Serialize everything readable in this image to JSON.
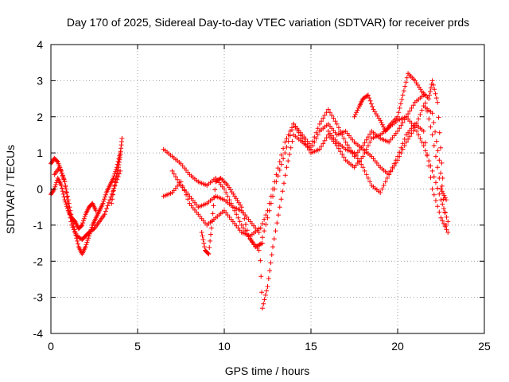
{
  "chart_data": {
    "type": "scatter",
    "title": "Day 170 of 2025, Sidereal Day-to-day VTEC variation (SDTVAR) for receiver prds",
    "xlabel": "GPS time / hours",
    "ylabel": "SDTVAR / TECUs",
    "xlim": [
      0,
      25
    ],
    "ylim": [
      -4,
      4
    ],
    "xticks": [
      "0",
      "5",
      "10",
      "15",
      "20",
      "25"
    ],
    "yticks": [
      "-4",
      "-3",
      "-2",
      "-1",
      "0",
      "1",
      "2",
      "3",
      "4"
    ],
    "grid": true,
    "marker": "+",
    "color": "#ff0000",
    "series": [
      {
        "name": "s1",
        "x": [
          0.0,
          0.2,
          0.4,
          0.6,
          0.8,
          1.0,
          1.2,
          1.4,
          1.6,
          1.8,
          2.0,
          2.2,
          2.4,
          2.6,
          2.8,
          3.0,
          3.2,
          3.4,
          3.6,
          3.8,
          4.0
        ],
        "y": [
          0.7,
          0.85,
          0.75,
          0.5,
          0.2,
          -0.3,
          -0.8,
          -1.2,
          -1.6,
          -1.8,
          -1.6,
          -1.3,
          -1.0,
          -0.8,
          -0.6,
          -0.4,
          -0.1,
          0.1,
          0.3,
          0.6,
          1.0
        ]
      },
      {
        "name": "s2",
        "x": [
          0.0,
          0.2,
          0.4,
          0.6,
          0.8,
          1.0,
          1.2,
          1.4,
          1.6,
          1.8,
          2.0,
          2.2,
          2.4,
          2.6
        ],
        "y": [
          -0.15,
          0.0,
          0.3,
          0.1,
          -0.3,
          -0.6,
          -0.8,
          -0.9,
          -1.1,
          -1.0,
          -0.7,
          -0.5,
          -0.4,
          -0.6
        ]
      },
      {
        "name": "s3",
        "x": [
          0.2,
          0.5,
          0.8,
          1.0,
          1.2,
          1.5,
          1.8,
          2.0,
          2.2,
          2.5,
          2.8,
          3.1,
          3.4,
          3.7,
          4.0
        ],
        "y": [
          0.4,
          0.6,
          0.2,
          -0.5,
          -1.0,
          -1.3,
          -1.4,
          -1.3,
          -1.2,
          -1.1,
          -0.9,
          -0.7,
          -0.3,
          0.1,
          0.5
        ]
      },
      {
        "name": "s4",
        "x": [
          3.5,
          3.7,
          3.9,
          4.0,
          4.1
        ],
        "y": [
          -0.4,
          0.2,
          0.6,
          0.95,
          1.4
        ]
      },
      {
        "name": "s5",
        "x": [
          6.5,
          7.0,
          7.5,
          8.0,
          8.5,
          9.0,
          9.5,
          10.0,
          10.5,
          11.0,
          11.5,
          12.0,
          12.5,
          13.0,
          13.5,
          14.0,
          14.5,
          15.0,
          15.5,
          16.0,
          16.5,
          17.0,
          17.5,
          18.0,
          18.5,
          19.0,
          19.5,
          20.0,
          20.5,
          21.0,
          21.5,
          22.0,
          22.5,
          22.8
        ],
        "y": [
          1.1,
          0.9,
          0.7,
          0.4,
          0.2,
          0.1,
          0.3,
          0.0,
          -0.5,
          -1.0,
          -1.4,
          -1.7,
          -0.8,
          0.2,
          1.0,
          1.8,
          1.5,
          1.2,
          1.8,
          2.2,
          1.8,
          1.3,
          0.9,
          1.2,
          1.6,
          1.4,
          1.3,
          1.6,
          2.0,
          2.4,
          2.6,
          1.5,
          0.0,
          -0.3
        ]
      },
      {
        "name": "s6",
        "x": [
          6.5,
          7.0,
          7.5,
          8.0,
          8.5,
          9.0,
          9.5,
          10.0,
          10.5,
          11.0,
          11.5,
          12.0,
          12.2,
          12.5,
          12.8,
          13.2,
          13.6,
          14.0,
          14.5,
          15.0,
          15.5,
          16.0,
          16.5,
          17.0,
          17.5,
          18.0,
          18.5,
          19.0,
          19.5,
          20.0,
          20.5,
          21.0,
          21.5,
          22.0,
          22.5,
          22.9
        ],
        "y": [
          -0.2,
          -0.1,
          0.2,
          -0.4,
          -0.7,
          -1.0,
          -0.8,
          -0.6,
          -0.9,
          -1.2,
          -1.3,
          -1.1,
          -3.3,
          -2.7,
          -1.6,
          -0.5,
          0.6,
          1.5,
          1.3,
          1.1,
          1.6,
          1.8,
          1.5,
          1.6,
          1.3,
          1.1,
          0.9,
          0.6,
          0.4,
          0.9,
          1.5,
          1.8,
          1.6,
          0.0,
          -0.8,
          -1.2
        ]
      },
      {
        "name": "s7",
        "x": [
          7.0,
          7.5,
          8.0,
          8.5,
          9.0,
          9.5,
          10.0,
          10.5,
          11.0,
          11.5,
          12.0,
          12.5,
          13.0,
          13.5,
          14.0,
          14.5,
          15.0,
          15.5,
          16.0,
          16.5,
          17.0,
          17.5,
          18.0,
          18.5,
          19.0,
          19.5,
          20.0,
          20.5,
          21.0,
          21.5,
          22.0,
          22.5,
          22.9
        ],
        "y": [
          0.5,
          0.1,
          -0.2,
          -0.5,
          -0.4,
          -0.2,
          -0.3,
          -0.5,
          -0.6,
          -0.9,
          -1.2,
          -0.6,
          0.4,
          1.3,
          1.8,
          1.4,
          1.0,
          1.1,
          1.5,
          1.2,
          0.8,
          0.6,
          0.9,
          1.4,
          1.5,
          1.7,
          1.9,
          2.0,
          1.7,
          1.2,
          0.5,
          -0.3,
          -0.9
        ]
      },
      {
        "name": "s8",
        "x": [
          8.7,
          8.9,
          9.1,
          9.3,
          9.5,
          9.8,
          10.2,
          10.6,
          11.0,
          11.4,
          11.8,
          12.2
        ],
        "y": [
          -1.2,
          -1.7,
          -1.8,
          -0.9,
          0.2,
          0.3,
          0.1,
          -0.2,
          -0.5,
          -1.3,
          -1.6,
          -1.5
        ]
      },
      {
        "name": "s9",
        "x": [
          17.5,
          17.8,
          18.0,
          18.3,
          18.6,
          19.0,
          19.3,
          19.6,
          20.0,
          20.3,
          20.6,
          21.0,
          21.4,
          21.8,
          22.0,
          22.3,
          22.6
        ],
        "y": [
          2.0,
          2.3,
          2.5,
          2.6,
          2.2,
          1.9,
          1.6,
          1.8,
          2.0,
          2.6,
          3.2,
          3.0,
          2.7,
          2.5,
          3.0,
          2.4,
          0.3
        ]
      },
      {
        "name": "s10",
        "x": [
          16.0,
          16.5,
          17.0,
          17.5,
          18.0,
          18.5,
          19.0,
          19.5,
          20.0,
          20.5,
          21.0,
          21.5,
          22.0,
          22.4,
          22.8
        ],
        "y": [
          1.6,
          1.3,
          1.1,
          1.0,
          0.6,
          0.1,
          -0.1,
          0.4,
          0.8,
          1.3,
          1.7,
          2.3,
          2.1,
          0.8,
          -1.0
        ]
      }
    ]
  }
}
